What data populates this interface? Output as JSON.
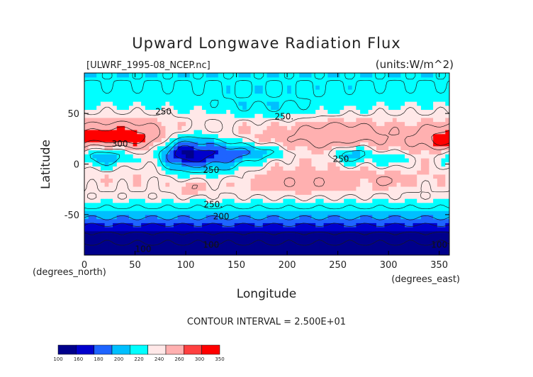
{
  "chart_data": {
    "type": "heatmap",
    "title": "Upward Longwave Radiation Flux",
    "source_label": "[ULWRF_1995-08_NCEP.nc]",
    "units_label": "(units:W/m^2)",
    "xlabel": "Longitude",
    "ylabel": "Latitude",
    "x_unit_label": "(degrees_east)",
    "y_unit_label": "(degrees_north)",
    "xlim": [
      0,
      360
    ],
    "ylim": [
      -90,
      90
    ],
    "x_ticks": [
      0,
      50,
      100,
      150,
      200,
      250,
      300,
      350
    ],
    "y_ticks": [
      -50,
      0,
      50
    ],
    "contour_interval_text": "CONTOUR INTERVAL = 2.500E+01",
    "colorbar": {
      "levels": [
        100,
        160,
        180,
        200,
        220,
        240,
        260,
        300,
        350
      ],
      "colors": [
        "#00008b",
        "#0000cd",
        "#1e64ff",
        "#00bfff",
        "#00ffff",
        "#ffe8e8",
        "#ffb0b0",
        "#ff4040",
        "#ff0000"
      ]
    },
    "contour_labels": [
      {
        "text": "250",
        "lon": 78,
        "lat": 52
      },
      {
        "text": "250.",
        "lon": 197,
        "lat": 47
      },
      {
        "text": "300",
        "lon": 35,
        "lat": 20
      },
      {
        "text": "250",
        "lon": 125,
        "lat": -6
      },
      {
        "text": "250",
        "lon": 253,
        "lat": 5
      },
      {
        "text": "250.",
        "lon": 127,
        "lat": -40
      },
      {
        "text": "200",
        "lon": 135,
        "lat": -52
      },
      {
        "text": "100",
        "lon": 125,
        "lat": -80
      },
      {
        "text": "100",
        "lon": 58,
        "lat": -84
      },
      {
        "text": "100",
        "lon": 350,
        "lat": -80
      }
    ],
    "field_description": "Zonal bands: ~150 W/m2 over Antarctica (-90 to -70), ~200 near -50, ~240-260 in southern subtropics, 280-300 over Sahara/Arabia (20N), lows ~200 in tropical convection (Africa, Maritime Continent, Central America), ~220-250 at high northern latitudes."
  }
}
